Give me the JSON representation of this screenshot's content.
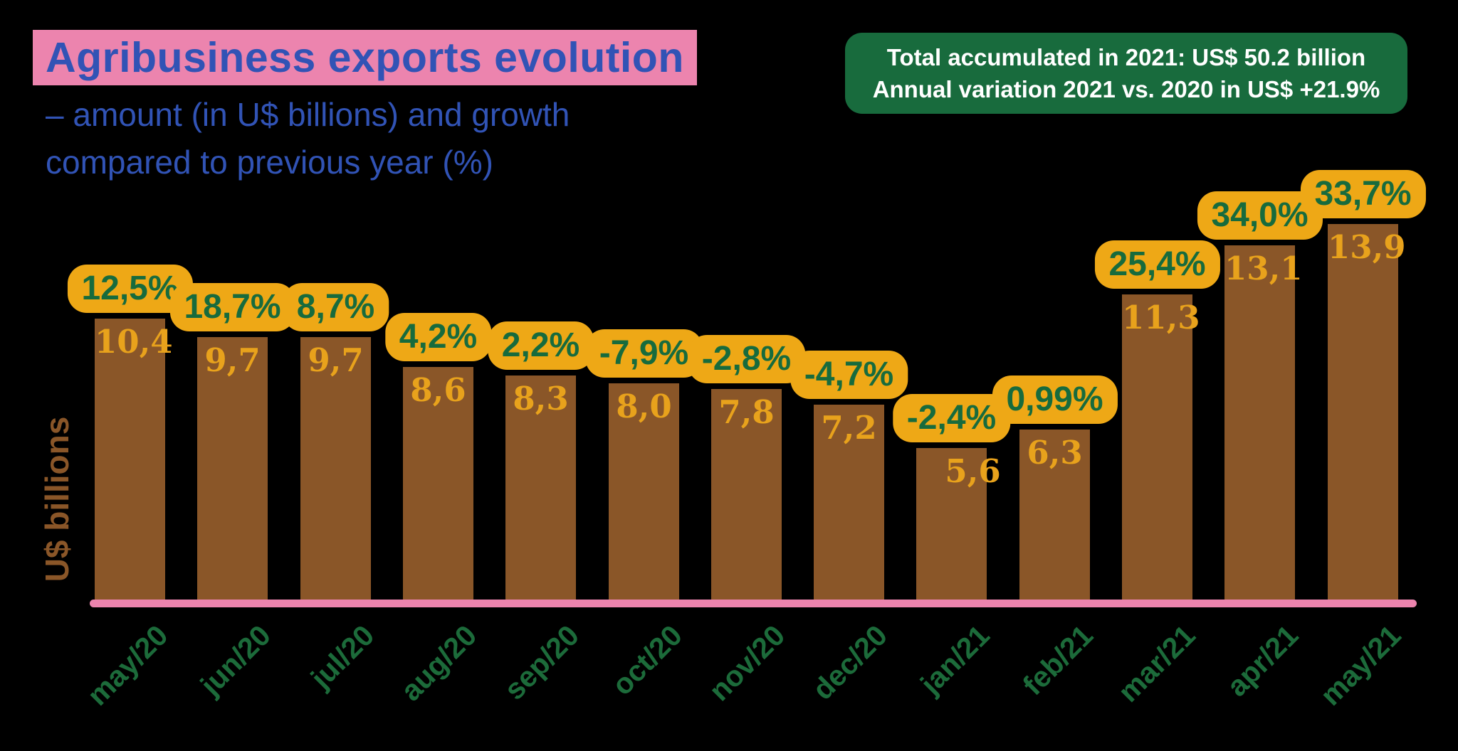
{
  "header": {
    "title": "Agribusiness exports evolution",
    "subtitle_line1": "– amount (in U$ billions) and growth",
    "subtitle_line2": "compared to previous year (%)",
    "title_text_color": "#3153B5",
    "title_highlight_color": "#EC84AE"
  },
  "summary_box": {
    "line1": "Total accumulated in 2021: US$ 50.2 billion",
    "line2": "Annual variation 2021 vs. 2020 in US$ +21.9%",
    "background": "#186B3D",
    "text_color": "#FFFFFF"
  },
  "chart_data": {
    "type": "bar",
    "title": "Agribusiness exports evolution – amount (in U$ billions) and growth compared to previous year (%)",
    "ylabel": "U$ billions",
    "xlabel": "",
    "categories": [
      "may/20",
      "jun/20",
      "jul/20",
      "aug/20",
      "sep/20",
      "oct/20",
      "nov/20",
      "dec/20",
      "jan/21",
      "feb/21",
      "mar/21",
      "apr/21",
      "may/21"
    ],
    "series": [
      {
        "name": "Exports amount (U$ billions)",
        "values": [
          10.4,
          9.7,
          9.7,
          8.6,
          8.3,
          8.0,
          7.8,
          7.2,
          5.6,
          6.3,
          11.3,
          13.1,
          13.9
        ]
      },
      {
        "name": "Growth vs previous year (%)",
        "values": [
          12.5,
          18.7,
          8.7,
          4.2,
          2.2,
          -7.9,
          -2.8,
          -4.7,
          -2.4,
          0.99,
          25.4,
          34.0,
          33.7
        ]
      }
    ],
    "value_labels": [
      "10,4",
      "9,7",
      "9,7",
      "8,6",
      "8,3",
      "8,0",
      "7,8",
      "7,2",
      "5,6",
      "6,3",
      "11,3",
      "13,1",
      "13,9"
    ],
    "growth_labels": [
      "12,5%",
      "18,7%",
      "8,7%",
      "4,2%",
      "2,2%",
      "-7,9%",
      "-2,8%",
      "-4,7%",
      "-2,4%",
      "0,99%",
      "25,4%",
      "34,0%",
      "33,7%"
    ],
    "ylim": [
      0,
      14
    ],
    "grid": false,
    "legend": "none",
    "colors": {
      "bar": "#8A5628",
      "bar_value_text": "#E8A21C",
      "badge_background": "#EEA816",
      "badge_text": "#176B3D",
      "x_label": "#1C6B3A",
      "y_label": "#8A5628",
      "axis_line": "#EC84AE",
      "background": "#000000"
    }
  }
}
